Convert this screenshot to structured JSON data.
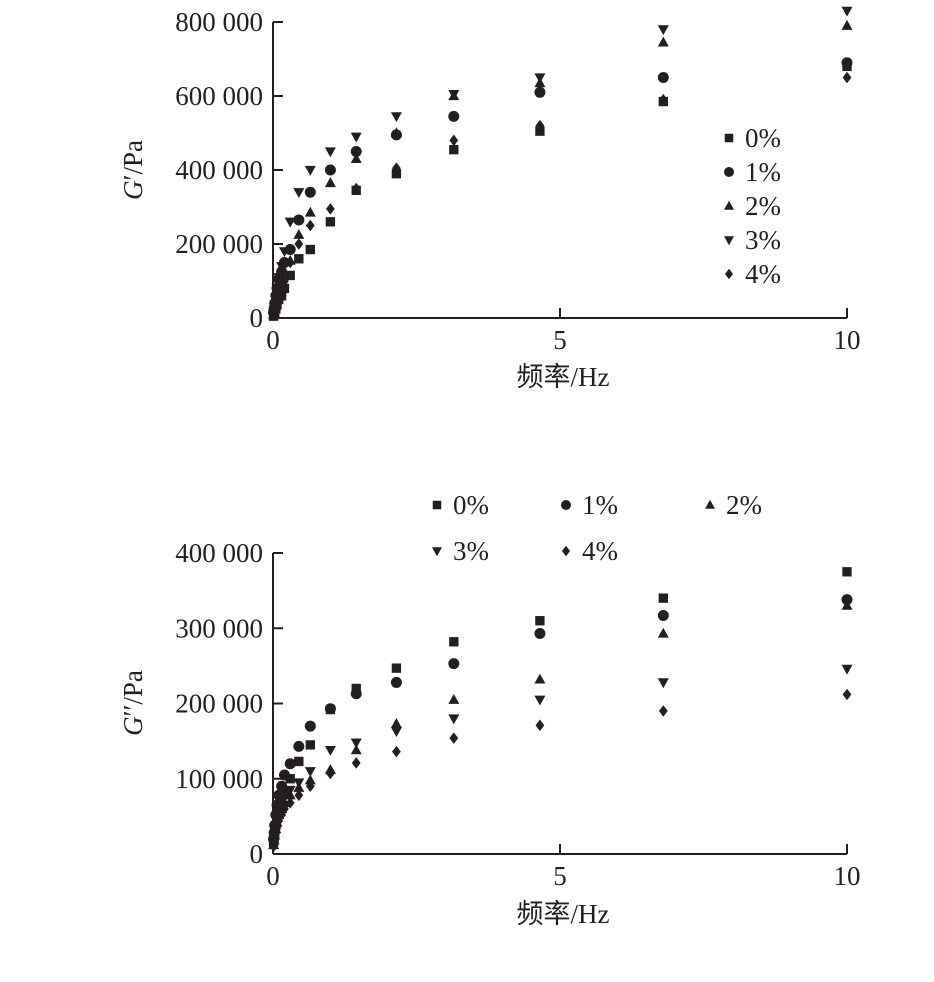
{
  "chart_data": [
    {
      "type": "scatter",
      "ylabel": "G′/Pa",
      "ylabel_symbol": "G",
      "ylabel_prime": "′",
      "ylabel_unit": "/Pa",
      "xlabel": "频率/Hz",
      "xlim": [
        0,
        10
      ],
      "ylim": [
        0,
        800000
      ],
      "xticks": [
        0,
        5,
        10
      ],
      "xtick_labels": [
        "0",
        "5",
        "10"
      ],
      "yticks": [
        0,
        200000,
        400000,
        600000,
        800000
      ],
      "ytick_labels": [
        "0",
        "200 000",
        "400 000",
        "600 000",
        "800 000"
      ],
      "grid": false,
      "legend_position": "right",
      "x": [
        0.01,
        0.02,
        0.03,
        0.05,
        0.07,
        0.1,
        0.15,
        0.2,
        0.3,
        0.45,
        0.65,
        1.0,
        1.45,
        2.15,
        3.15,
        4.65,
        6.8,
        10.0
      ],
      "series": [
        {
          "name": "0%",
          "marker": "square",
          "values": [
            5000,
            10000,
            15000,
            25000,
            35000,
            50000,
            60000,
            80000,
            115000,
            160000,
            185000,
            260000,
            345000,
            390000,
            455000,
            505000,
            585000,
            680000
          ]
        },
        {
          "name": "1%",
          "marker": "circle",
          "values": [
            15000,
            25000,
            40000,
            60000,
            80000,
            105000,
            125000,
            150000,
            185000,
            265000,
            340000,
            400000,
            450000,
            495000,
            545000,
            610000,
            650000,
            690000
          ]
        },
        {
          "name": "2%",
          "marker": "triangle-up",
          "values": [
            8000,
            15000,
            25000,
            40000,
            60000,
            80000,
            100000,
            125000,
            155000,
            225000,
            285000,
            365000,
            430000,
            500000,
            600000,
            635000,
            745000,
            790000
          ]
        },
        {
          "name": "3%",
          "marker": "triangle-down",
          "values": [
            12000,
            22000,
            35000,
            55000,
            80000,
            110000,
            140000,
            180000,
            260000,
            340000,
            400000,
            450000,
            490000,
            545000,
            605000,
            650000,
            780000,
            830000
          ]
        },
        {
          "name": "4%",
          "marker": "diamond",
          "values": [
            6000,
            12000,
            20000,
            32000,
            48000,
            65000,
            80000,
            100000,
            150000,
            200000,
            250000,
            295000,
            350000,
            405000,
            480000,
            520000,
            590000,
            650000
          ]
        }
      ]
    },
    {
      "type": "scatter",
      "ylabel": "G″/Pa",
      "ylabel_symbol": "G",
      "ylabel_prime": "′′",
      "ylabel_unit": "/Pa",
      "xlabel": "频率/Hz",
      "xlim": [
        0,
        10
      ],
      "ylim": [
        0,
        400000
      ],
      "xticks": [
        0,
        5,
        10
      ],
      "xtick_labels": [
        "0",
        "5",
        "10"
      ],
      "yticks": [
        0,
        100000,
        200000,
        300000,
        400000
      ],
      "ytick_labels": [
        "0",
        "100 000",
        "200 000",
        "300 000",
        "400 000"
      ],
      "grid": false,
      "legend_position": "top",
      "x": [
        0.01,
        0.02,
        0.03,
        0.05,
        0.07,
        0.1,
        0.15,
        0.2,
        0.3,
        0.45,
        0.65,
        1.0,
        1.45,
        2.15,
        3.15,
        4.65,
        6.8,
        10.0
      ],
      "series": [
        {
          "name": "0%",
          "marker": "square",
          "values": [
            15000,
            20000,
            28000,
            38000,
            50000,
            60000,
            72000,
            82000,
            100000,
            123000,
            145000,
            192000,
            220000,
            247000,
            282000,
            310000,
            340000,
            375000
          ]
        },
        {
          "name": "1%",
          "marker": "circle",
          "values": [
            20000,
            28000,
            38000,
            52000,
            65000,
            78000,
            90000,
            105000,
            120000,
            143000,
            170000,
            193000,
            213000,
            228000,
            253000,
            293000,
            317000,
            338000
          ]
        },
        {
          "name": "2%",
          "marker": "triangle-up",
          "values": [
            12000,
            18000,
            25000,
            33000,
            42000,
            52000,
            60000,
            68000,
            78000,
            88000,
            98000,
            112000,
            138000,
            173000,
            205000,
            232000,
            293000,
            330000
          ]
        },
        {
          "name": "3%",
          "marker": "triangle-down",
          "values": [
            14000,
            20000,
            27000,
            36000,
            46000,
            56000,
            65000,
            75000,
            85000,
            95000,
            110000,
            138000,
            148000,
            163000,
            180000,
            205000,
            228000,
            246000
          ]
        },
        {
          "name": "4%",
          "marker": "diamond",
          "values": [
            10000,
            15000,
            21000,
            28000,
            36000,
            44000,
            52000,
            60000,
            68000,
            78000,
            90000,
            107000,
            121000,
            136000,
            154000,
            171000,
            190000,
            212000
          ]
        }
      ]
    }
  ]
}
